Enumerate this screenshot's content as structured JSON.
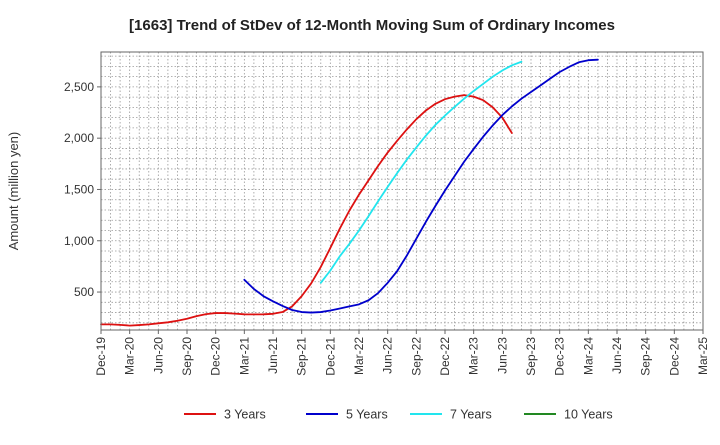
{
  "chart_data": {
    "type": "line",
    "title": "[1663]  Trend of StDev of 12-Month Moving Sum of Ordinary Incomes",
    "xlabel": "",
    "ylabel": "Amount (million yen)",
    "ylim": [
      130,
      2840
    ],
    "yticks": [
      500,
      1000,
      1500,
      2000,
      2500
    ],
    "ytick_labels": [
      "500",
      "1,000",
      "1,500",
      "2,000",
      "2,500"
    ],
    "grid": true,
    "legend_position": "bottom",
    "x_labels": [
      "Dec-19",
      "Mar-20",
      "Jun-20",
      "Sep-20",
      "Dec-20",
      "Mar-21",
      "Jun-21",
      "Sep-21",
      "Dec-21",
      "Mar-22",
      "Jun-22",
      "Sep-22",
      "Dec-22",
      "Mar-23",
      "Jun-23",
      "Sep-23",
      "Dec-23",
      "Mar-24",
      "Jun-24",
      "Sep-24",
      "Dec-24",
      "Mar-25"
    ],
    "series": [
      {
        "name": "3 Years",
        "color": "#dd1111",
        "start_index": 0,
        "values": [
          185,
          185,
          180,
          173,
          178,
          185,
          195,
          205,
          220,
          240,
          265,
          285,
          295,
          295,
          290,
          283,
          282,
          283,
          288,
          305,
          360,
          460,
          585,
          745,
          930,
          1120,
          1295,
          1450,
          1590,
          1730,
          1860,
          1975,
          2085,
          2185,
          2270,
          2335,
          2380,
          2405,
          2420,
          2405,
          2370,
          2300,
          2200,
          2050
        ]
      },
      {
        "name": "5 Years",
        "color": "#0000cc",
        "start_index": 15,
        "values": [
          620,
          530,
          460,
          410,
          365,
          325,
          305,
          300,
          305,
          320,
          340,
          360,
          380,
          420,
          490,
          590,
          705,
          855,
          1020,
          1185,
          1340,
          1490,
          1630,
          1770,
          1895,
          2015,
          2125,
          2225,
          2310,
          2385,
          2450,
          2515,
          2580,
          2645,
          2695,
          2740,
          2760,
          2765
        ]
      },
      {
        "name": "7 Years",
        "color": "#22e5ee",
        "start_index": 23,
        "values": [
          590,
          710,
          850,
          970,
          1100,
          1240,
          1385,
          1525,
          1660,
          1790,
          1910,
          2025,
          2130,
          2220,
          2305,
          2385,
          2460,
          2530,
          2600,
          2660,
          2710,
          2745
        ]
      },
      {
        "name": "10 Years",
        "color": "#228822",
        "start_index": 0,
        "values": []
      }
    ]
  }
}
